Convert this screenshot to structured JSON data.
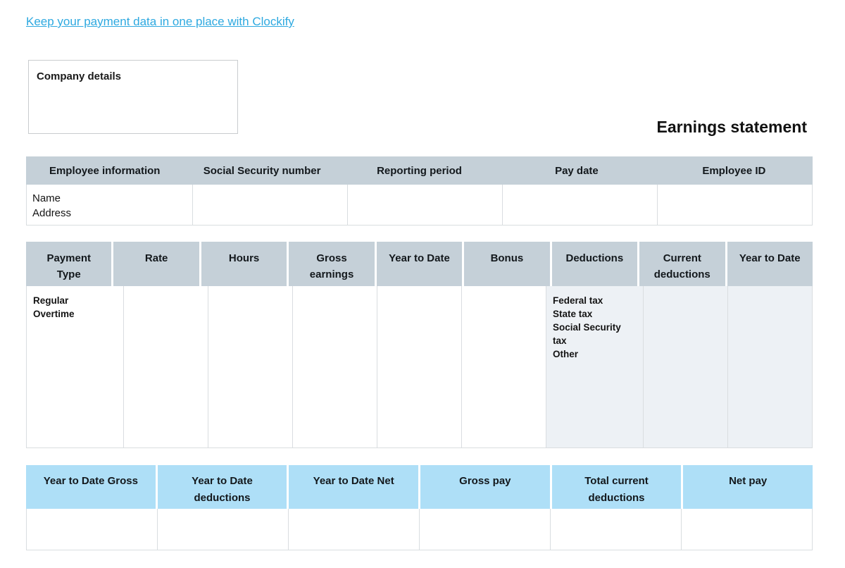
{
  "link": {
    "label": "Keep your payment data in one place with Clockify"
  },
  "company": {
    "label": "Company details"
  },
  "title": "Earnings statement",
  "colors": {
    "link": "#2ea9e0",
    "header_gray": "#c5d0d8",
    "header_blue": "#aedff7",
    "body_tint": "#edf1f5",
    "border": "#d9dde0"
  },
  "employee_table": {
    "headers": [
      "Employee information",
      "Social Security number",
      "Reporting period",
      "Pay date",
      "Employee ID"
    ],
    "row": {
      "employee_information": "Name\nAddress",
      "social_security_number": "",
      "reporting_period": "",
      "pay_date": "",
      "employee_id": ""
    }
  },
  "payments_table": {
    "headers": [
      "Payment\nType",
      "Rate",
      "Hours",
      "Gross\nearnings",
      "Year to Date",
      "Bonus",
      "Deductions",
      "Current\ndeductions",
      "Year to Date"
    ],
    "row": {
      "payment_type": "Regular\nOvertime",
      "rate": "",
      "hours": "",
      "gross_earnings": "",
      "year_to_date": "",
      "bonus": "",
      "deductions": "Federal tax\nState tax\nSocial Security tax\nOther",
      "current_deductions": "",
      "year_to_date_2": ""
    }
  },
  "summary_table": {
    "headers": [
      "Year to Date Gross",
      "Year to Date\ndeductions",
      "Year to Date Net",
      "Gross pay",
      "Total current\ndeductions",
      "Net pay"
    ],
    "row": {
      "ytd_gross": "",
      "ytd_deductions": "",
      "ytd_net": "",
      "gross_pay": "",
      "total_current_deductions": "",
      "net_pay": ""
    }
  }
}
